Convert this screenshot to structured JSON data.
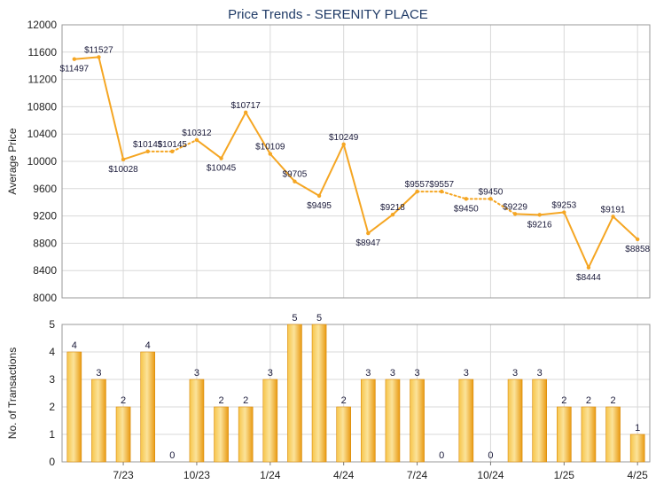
{
  "chart_data": [
    {
      "type": "line",
      "title": "Price Trends - SERENITY PLACE",
      "ylabel": "Average Price",
      "ylim": [
        8000,
        12000
      ],
      "yticks": [
        8000,
        8400,
        8800,
        9200,
        9600,
        10000,
        10400,
        10800,
        11200,
        11600,
        12000
      ],
      "color": "#f5a623",
      "points": [
        {
          "value": 11497,
          "label": "$11497"
        },
        {
          "value": 11527,
          "label": "$11527"
        },
        {
          "value": 10028,
          "label": "$10028"
        },
        {
          "value": 10145,
          "label": "$10145"
        },
        {
          "value": 10145,
          "label": "$10145"
        },
        {
          "value": 10312,
          "label": "$10312"
        },
        {
          "value": 10045,
          "label": "$10045"
        },
        {
          "value": 10717,
          "label": "$10717"
        },
        {
          "value": 10109,
          "label": "$10109"
        },
        {
          "value": 9705,
          "label": "$9705"
        },
        {
          "value": 9495,
          "label": "$9495"
        },
        {
          "value": 10249,
          "label": "$10249"
        },
        {
          "value": 8947,
          "label": "$8947"
        },
        {
          "value": 9218,
          "label": "$9218"
        },
        {
          "value": 9557,
          "label": "$9557"
        },
        {
          "value": 9557,
          "label": "$9557"
        },
        {
          "value": 9450,
          "label": "$9450"
        },
        {
          "value": 9450,
          "label": "$9450"
        },
        {
          "value": 9229,
          "label": "$9229"
        },
        {
          "value": 9216,
          "label": "$9216"
        },
        {
          "value": 9253,
          "label": "$9253"
        },
        {
          "value": 8444,
          "label": "$8444"
        },
        {
          "value": 9191,
          "label": "$9191"
        },
        {
          "value": 8858,
          "label": "$8858"
        }
      ]
    },
    {
      "type": "bar",
      "ylabel": "No. of Transactions",
      "ylim": [
        0,
        5
      ],
      "yticks": [
        0,
        1,
        2,
        3,
        4,
        5
      ],
      "color": "#f5b027",
      "values": [
        4,
        3,
        2,
        4,
        0,
        3,
        2,
        2,
        3,
        5,
        5,
        2,
        3,
        3,
        3,
        0,
        3,
        0,
        3,
        3,
        2,
        2,
        2,
        1
      ],
      "xticks": [
        "7/23",
        "10/23",
        "1/24",
        "4/24",
        "7/24",
        "10/24",
        "1/25",
        "4/25"
      ]
    }
  ]
}
